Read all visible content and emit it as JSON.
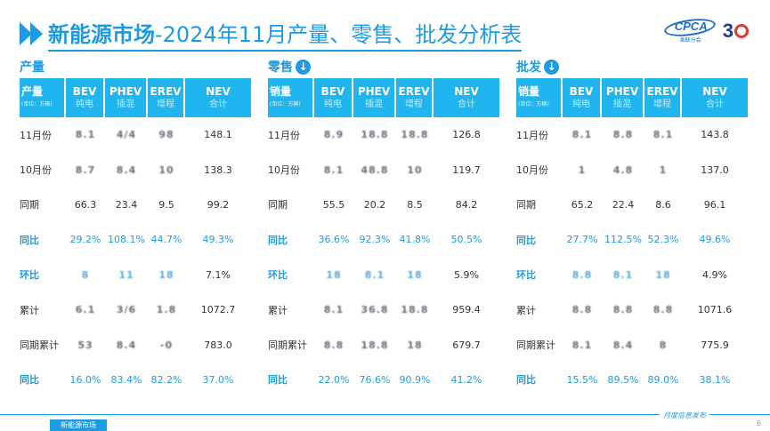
{
  "header": {
    "title_strong": "新能源市场",
    "title_rest": "-2024年11月产量、零售、批发分析表"
  },
  "logo": {
    "cpca": "CPCA",
    "cpca_sub": "乘联分会",
    "anniv": "3"
  },
  "panels": [
    {
      "title": "产量",
      "has_icon": false,
      "head": {
        "label_main": "产量",
        "label_sub": "(单位：万辆)",
        "cols": [
          {
            "main": "BEV",
            "sub": "纯电"
          },
          {
            "main": "PHEV",
            "sub": "插混"
          },
          {
            "main": "EREV",
            "sub": "增程"
          },
          {
            "main": "NEV",
            "sub": "合计"
          }
        ]
      },
      "rows": [
        {
          "label": "11月份",
          "style": "normal",
          "vals": [
            "8.1",
            "4/4",
            "98",
            "148.1"
          ],
          "blur": [
            true,
            true,
            true,
            false
          ]
        },
        {
          "label": "10月份",
          "style": "normal",
          "vals": [
            "8.7",
            "8.4",
            "10",
            "138.3"
          ],
          "blur": [
            true,
            true,
            true,
            false
          ]
        },
        {
          "label": "同期",
          "style": "normal",
          "vals": [
            "66.3",
            "23.4",
            "9.5",
            "99.2"
          ],
          "blur": [
            false,
            false,
            false,
            false
          ]
        },
        {
          "label": "同比",
          "style": "blue",
          "vals": [
            "29.2%",
            "108.1%",
            "44.7%",
            "49.3%"
          ],
          "blur": [
            false,
            false,
            false,
            false
          ]
        },
        {
          "label": "环比",
          "style": "hl",
          "vals": [
            "8",
            "11",
            "18",
            "7.1%"
          ],
          "blur": [
            true,
            true,
            true,
            false
          ]
        },
        {
          "label": "累计",
          "style": "normal",
          "vals": [
            "6.1",
            "3/6",
            "1.8",
            "1072.7"
          ],
          "blur": [
            true,
            true,
            true,
            false
          ]
        },
        {
          "label": "同期累计",
          "style": "normal",
          "vals": [
            "53",
            "8.4",
            "-0",
            "783.0"
          ],
          "blur": [
            true,
            true,
            true,
            false
          ]
        },
        {
          "label": "同比",
          "style": "blue",
          "vals": [
            "16.0%",
            "83.4%",
            "82.2%",
            "37.0%"
          ],
          "blur": [
            false,
            false,
            false,
            false
          ]
        }
      ]
    },
    {
      "title": "零售",
      "has_icon": true,
      "head": {
        "label_main": "销量",
        "label_sub": "(单位：万辆)",
        "cols": [
          {
            "main": "BEV",
            "sub": "纯电"
          },
          {
            "main": "PHEV",
            "sub": "插混"
          },
          {
            "main": "EREV",
            "sub": "增程"
          },
          {
            "main": "NEV",
            "sub": "合计"
          }
        ]
      },
      "rows": [
        {
          "label": "11月份",
          "style": "normal",
          "vals": [
            "8.9",
            "18.8",
            "18.8",
            "126.8"
          ],
          "blur": [
            true,
            true,
            true,
            false
          ]
        },
        {
          "label": "10月份",
          "style": "normal",
          "vals": [
            "8.1",
            "48.8",
            "10",
            "119.7"
          ],
          "blur": [
            true,
            true,
            true,
            false
          ]
        },
        {
          "label": "同期",
          "style": "normal",
          "vals": [
            "55.5",
            "20.2",
            "8.5",
            "84.2"
          ],
          "blur": [
            false,
            false,
            false,
            false
          ]
        },
        {
          "label": "同比",
          "style": "blue",
          "vals": [
            "36.6%",
            "92.3%",
            "41.8%",
            "50.5%"
          ],
          "blur": [
            false,
            false,
            false,
            false
          ]
        },
        {
          "label": "环比",
          "style": "hl",
          "vals": [
            "18",
            "8.1",
            "18",
            "5.9%"
          ],
          "blur": [
            true,
            true,
            true,
            false
          ]
        },
        {
          "label": "累计",
          "style": "normal",
          "vals": [
            "8.1",
            "36.8",
            "18.8",
            "959.4"
          ],
          "blur": [
            true,
            true,
            true,
            false
          ]
        },
        {
          "label": "同期累计",
          "style": "normal",
          "vals": [
            "8.8",
            "18.8",
            "18",
            "679.7"
          ],
          "blur": [
            true,
            true,
            true,
            false
          ]
        },
        {
          "label": "同比",
          "style": "blue",
          "vals": [
            "22.0%",
            "76.6%",
            "90.9%",
            "41.2%"
          ],
          "blur": [
            false,
            false,
            false,
            false
          ]
        }
      ]
    },
    {
      "title": "批发",
      "has_icon": true,
      "head": {
        "label_main": "销量",
        "label_sub": "(单位：万辆)",
        "cols": [
          {
            "main": "BEV",
            "sub": "纯电"
          },
          {
            "main": "PHEV",
            "sub": "插混"
          },
          {
            "main": "EREV",
            "sub": "增程"
          },
          {
            "main": "NEV",
            "sub": "合计"
          }
        ]
      },
      "rows": [
        {
          "label": "11月份",
          "style": "normal",
          "vals": [
            "8.1",
            "8.8",
            "8.1",
            "143.8"
          ],
          "blur": [
            true,
            true,
            true,
            false
          ]
        },
        {
          "label": "10月份",
          "style": "normal",
          "vals": [
            "1",
            "4.8",
            "1",
            "137.0"
          ],
          "blur": [
            true,
            true,
            true,
            false
          ]
        },
        {
          "label": "同期",
          "style": "normal",
          "vals": [
            "65.2",
            "22.4",
            "8.6",
            "96.1"
          ],
          "blur": [
            false,
            false,
            false,
            false
          ]
        },
        {
          "label": "同比",
          "style": "blue",
          "vals": [
            "27.7%",
            "112.5%",
            "52.3%",
            "49.6%"
          ],
          "blur": [
            false,
            false,
            false,
            false
          ]
        },
        {
          "label": "环比",
          "style": "hl",
          "vals": [
            "8.8",
            "8.1",
            "18",
            "4.9%"
          ],
          "blur": [
            true,
            true,
            true,
            false
          ]
        },
        {
          "label": "累计",
          "style": "normal",
          "vals": [
            "8.8",
            "8.8",
            "8.8",
            "1071.6"
          ],
          "blur": [
            true,
            true,
            true,
            false
          ]
        },
        {
          "label": "同期累计",
          "style": "normal",
          "vals": [
            "8.1",
            "8.4",
            "8",
            "775.9"
          ],
          "blur": [
            true,
            true,
            true,
            false
          ]
        },
        {
          "label": "同比",
          "style": "blue",
          "vals": [
            "15.5%",
            "89.5%",
            "89.0%",
            "38.1%"
          ],
          "blur": [
            false,
            false,
            false,
            false
          ]
        }
      ]
    }
  ],
  "footer": {
    "tag": "新能源市场",
    "right": "月度信息发布",
    "page": "6"
  }
}
